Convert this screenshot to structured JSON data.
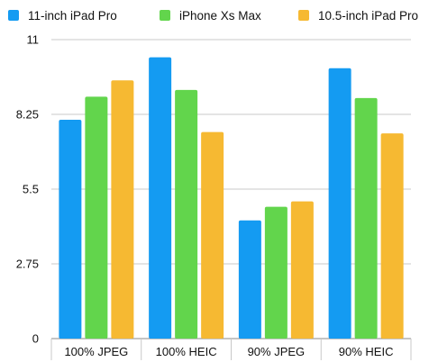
{
  "chart_data": {
    "type": "bar",
    "categories": [
      "100% JPEG",
      "100% HEIC",
      "90% JPEG",
      "90% HEIC"
    ],
    "series": [
      {
        "name": "11-inch iPad Pro",
        "color": "#149bf2",
        "values": [
          8.05,
          10.35,
          4.35,
          9.95
        ]
      },
      {
        "name": "iPhone Xs Max",
        "color": "#62d54c",
        "values": [
          8.9,
          9.15,
          4.85,
          8.85
        ]
      },
      {
        "name": "10.5-inch iPad Pro",
        "color": "#f6b932",
        "values": [
          9.5,
          7.6,
          5.05,
          7.55
        ]
      }
    ],
    "ylim": [
      0,
      11
    ],
    "yticks": [
      0,
      2.75,
      5.5,
      8.25,
      11
    ],
    "ytick_labels": [
      "0",
      "2.75",
      "5.5",
      "8.25",
      "11"
    ],
    "grid": true,
    "legend_position": "top"
  }
}
